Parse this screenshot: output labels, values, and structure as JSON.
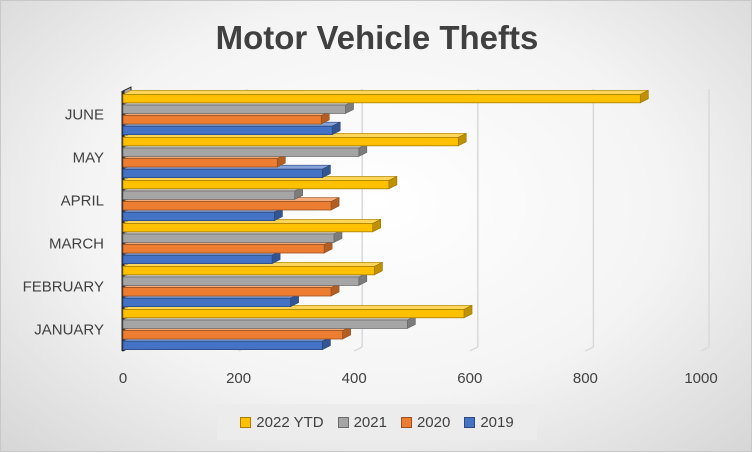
{
  "chart_data": {
    "type": "bar",
    "orientation": "horizontal",
    "title": "Motor Vehicle Thefts",
    "categories": [
      "JANUARY",
      "FEBRUARY",
      "MARCH",
      "APRIL",
      "MAY",
      "JUNE"
    ],
    "series": [
      {
        "name": "2022 YTD",
        "values": [
          590,
          435,
          432,
          460,
          580,
          895
        ],
        "color": "#FFC000"
      },
      {
        "name": "2021",
        "values": [
          492,
          408,
          365,
          297,
          408,
          385
        ],
        "color": "#A5A5A5"
      },
      {
        "name": "2020",
        "values": [
          380,
          360,
          348,
          360,
          267,
          343
        ],
        "color": "#ED7D31"
      },
      {
        "name": "2019",
        "values": [
          345,
          290,
          258,
          262,
          345,
          362
        ],
        "color": "#4472C4"
      }
    ],
    "xlim": [
      0,
      1000
    ],
    "xticks": [
      "0",
      "200",
      "400",
      "600",
      "800",
      "1000"
    ],
    "grid": true,
    "legend_position": "bottom",
    "style": "3d"
  }
}
